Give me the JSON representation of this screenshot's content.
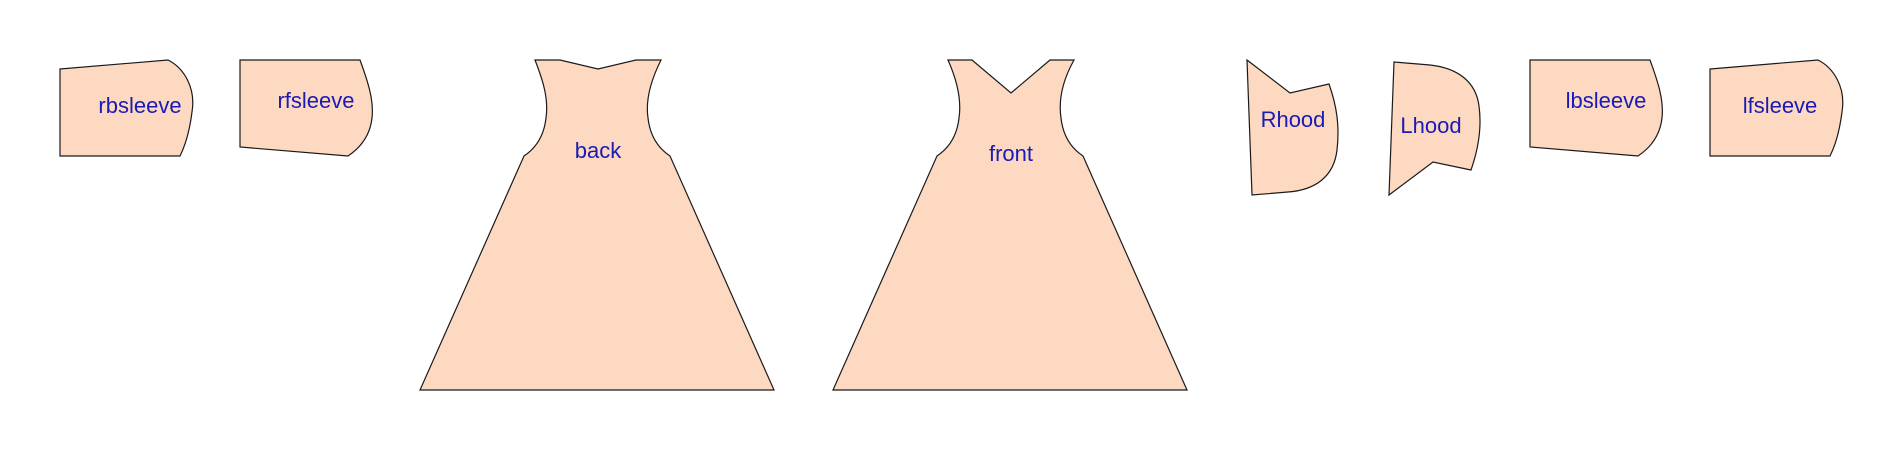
{
  "colors": {
    "piece_fill": "#FDD9C1",
    "piece_stroke": "#1A1A1A",
    "label_color": "#1A1AB4",
    "background": "#FFFFFF"
  },
  "pieces": {
    "rbsleeve": {
      "label": "rbsleeve"
    },
    "rfsleeve": {
      "label": "rfsleeve"
    },
    "back": {
      "label": "back"
    },
    "front": {
      "label": "front"
    },
    "rhood": {
      "label": "Rhood"
    },
    "lhood": {
      "label": "Lhood"
    },
    "lbsleeve": {
      "label": "lbsleeve"
    },
    "lfsleeve": {
      "label": "lfsleeve"
    }
  }
}
